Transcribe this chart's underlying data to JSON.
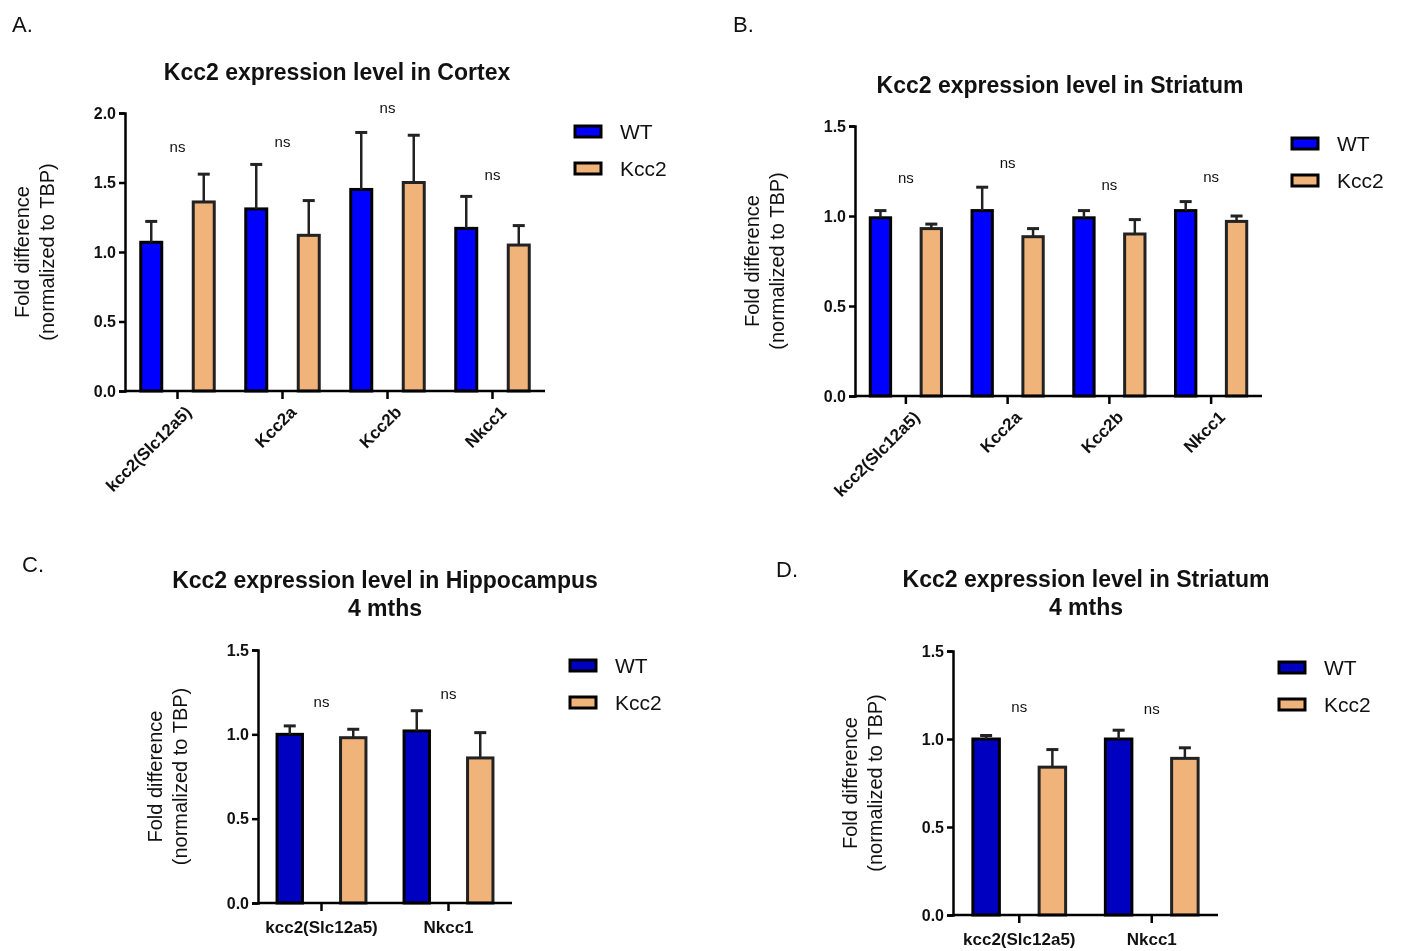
{
  "chart_data": [
    {
      "type": "bar",
      "title": "Kcc2 expression level in Cortex",
      "ylabel": "Fold difference\n(normalized to TBP)",
      "categories": [
        "kcc2(Slc12a5)",
        "Kcc2a",
        "Kcc2b",
        "Nkcc1"
      ],
      "ylim": [
        0,
        2
      ],
      "yticks": [
        {
          "value": 0,
          "label": "0.0"
        },
        {
          "value": 0.5,
          "label": "0.5"
        },
        {
          "value": 1,
          "label": "1.0"
        },
        {
          "value": 1.5,
          "label": "1.5"
        },
        {
          "value": 2,
          "label": "2.0"
        }
      ],
      "legend": "top right",
      "series": [
        {
          "name": "WT",
          "color": "#0000ff",
          "values": [
            1.07,
            1.31,
            1.45,
            1.17
          ],
          "errors": [
            [
              1.07,
              1.22
            ],
            [
              1.31,
              1.63
            ],
            [
              1.45,
              1.86
            ],
            [
              1.17,
              1.4
            ]
          ]
        },
        {
          "name": "Kcc2",
          "color": "#f0b47a",
          "values": [
            1.36,
            1.12,
            1.5,
            1.05
          ],
          "errors": [
            [
              1.36,
              1.56
            ],
            [
              1.12,
              1.37
            ],
            [
              1.5,
              1.84
            ],
            [
              1.05,
              1.19
            ]
          ]
        }
      ],
      "annotations": [
        "A.",
        "ns",
        "ns",
        "ns",
        "ns"
      ]
    },
    {
      "type": "bar",
      "title": "Kcc2 expression level in Striatum",
      "ylabel": "Fold difference\n(normalized to TBP)",
      "categories": [
        "kcc2(Slc12a5)",
        "Kcc2a",
        "Kcc2b",
        "Nkcc1"
      ],
      "ylim": [
        0,
        1.5
      ],
      "yticks": [
        {
          "value": 0,
          "label": "0.0"
        },
        {
          "value": 0.5,
          "label": "0.5"
        },
        {
          "value": 1,
          "label": "1.0"
        },
        {
          "value": 1.5,
          "label": "1.5"
        }
      ],
      "legend": "top right",
      "series": [
        {
          "name": "WT",
          "color": "#0000ff",
          "values": [
            0.99,
            1.03,
            0.99,
            1.03
          ],
          "errors": [
            [
              0.99,
              1.03
            ],
            [
              1.03,
              1.16
            ],
            [
              0.99,
              1.03
            ],
            [
              1.03,
              1.08
            ]
          ]
        },
        {
          "name": "Kcc2",
          "color": "#f0b47a",
          "values": [
            0.93,
            0.885,
            0.9,
            0.97
          ],
          "errors": [
            [
              0.93,
              0.955
            ],
            [
              0.885,
              0.93
            ],
            [
              0.9,
              0.98
            ],
            [
              0.97,
              1.0
            ]
          ]
        }
      ],
      "annotations": [
        "B.",
        "ns",
        "ns",
        "ns",
        "ns"
      ]
    },
    {
      "type": "bar",
      "title": "Kcc2 expression level in Hippocampus",
      "subtitle": "4 mths",
      "ylabel": "Fold difference\n(normalized to TBP)",
      "categories": [
        "kcc2(Slc12a5)",
        "Nkcc1"
      ],
      "ylim": [
        0,
        1.5
      ],
      "yticks": [
        {
          "value": 0,
          "label": "0.0"
        },
        {
          "value": 0.5,
          "label": "0.5"
        },
        {
          "value": 1,
          "label": "1.0"
        },
        {
          "value": 1.5,
          "label": "1.5"
        }
      ],
      "legend": "top right",
      "series": [
        {
          "name": "WT",
          "color": "#0000c0",
          "values": [
            1.0,
            1.02
          ],
          "errors": [
            [
              1.0,
              1.05
            ],
            [
              1.02,
              1.14
            ]
          ]
        },
        {
          "name": "Kcc2",
          "color": "#f0b47a",
          "values": [
            0.98,
            0.86
          ],
          "errors": [
            [
              0.98,
              1.03
            ],
            [
              0.86,
              1.01
            ]
          ]
        }
      ],
      "annotations": [
        "C.",
        "ns",
        "ns"
      ]
    },
    {
      "type": "bar",
      "title": "Kcc2 expression level in Striatum",
      "subtitle": "4 mths",
      "ylabel": "Fold difference\n(normalized to TBP)",
      "categories": [
        "kcc2(Slc12a5)",
        "Nkcc1"
      ],
      "ylim": [
        0,
        1.5
      ],
      "yticks": [
        {
          "value": 0,
          "label": "0.0"
        },
        {
          "value": 0.5,
          "label": "0.5"
        },
        {
          "value": 1,
          "label": "1.0"
        },
        {
          "value": 1.5,
          "label": "1.5"
        }
      ],
      "legend": "top right",
      "series": [
        {
          "name": "WT",
          "color": "#0000c0",
          "values": [
            1.0,
            1.0
          ],
          "errors": [
            [
              1.0,
              1.02
            ],
            [
              1.0,
              1.05
            ]
          ]
        },
        {
          "name": "Kcc2",
          "color": "#f0b47a",
          "values": [
            0.84,
            0.89
          ],
          "errors": [
            [
              0.84,
              0.94
            ],
            [
              0.89,
              0.95
            ]
          ]
        }
      ],
      "annotations": [
        "D.",
        "ns",
        "ns"
      ]
    }
  ]
}
